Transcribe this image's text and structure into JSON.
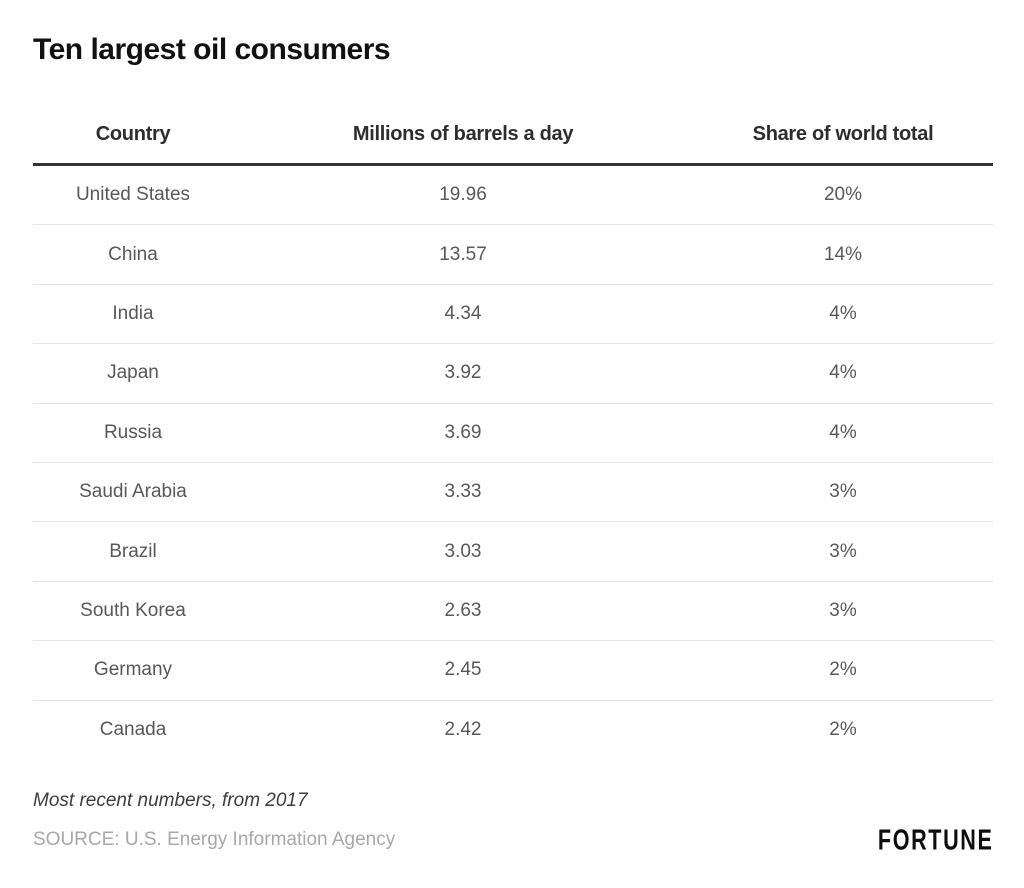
{
  "title": "Ten largest oil consumers",
  "chart_data": {
    "type": "table",
    "title": "Ten largest oil consumers",
    "columns": [
      "Country",
      "Millions of barrels a day",
      "Share of world total"
    ],
    "rows": [
      [
        "United States",
        "19.96",
        "20%"
      ],
      [
        "China",
        "13.57",
        "14%"
      ],
      [
        "India",
        "4.34",
        "4%"
      ],
      [
        "Japan",
        "3.92",
        "4%"
      ],
      [
        "Russia",
        "3.69",
        "4%"
      ],
      [
        "Saudi Arabia",
        "3.33",
        "3%"
      ],
      [
        "Brazil",
        "3.03",
        "3%"
      ],
      [
        "South Korea",
        "2.63",
        "3%"
      ],
      [
        "Germany",
        "2.45",
        "2%"
      ],
      [
        "Canada",
        "2.42",
        "2%"
      ]
    ],
    "note": "Most recent numbers, from 2017",
    "source": "SOURCE: U.S. Energy Information Agency",
    "layout": {
      "header_rule_color": "#333333",
      "row_separator_color": "#e4e4e4",
      "grid": "horizontal-only",
      "column_alignment": "center"
    }
  },
  "footer": {
    "note": "Most recent numbers, from 2017",
    "source": "SOURCE: U.S. Energy Information Agency",
    "brand": "FORTUNE"
  },
  "colors": {
    "background": "#ffffff",
    "title_text": "#111111",
    "header_text": "#2d2d2d",
    "body_text": "#585858",
    "heavy_rule": "#333333",
    "light_rule": "#e4e4e4",
    "note_text": "#3d3d3d",
    "source_text": "#a8a8a8",
    "brand_text": "#0d0d0d"
  }
}
